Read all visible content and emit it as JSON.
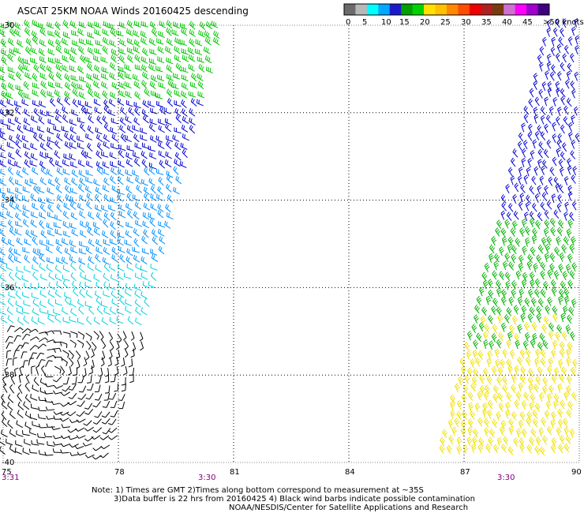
{
  "title": "ASCAT 25KM NOAA Winds 20160425 descending",
  "colors": {
    "background": "#ffffff",
    "grid": "#000000",
    "time_label": "#800080",
    "contamination": "#000000"
  },
  "legend": {
    "labels": [
      "0",
      "5",
      "10",
      "15",
      "20",
      "25",
      "30",
      "35",
      "40",
      "45",
      ">50 knots"
    ],
    "colors": [
      "#6b6b6b",
      "#b8b8b8",
      "#00ffff",
      "#00a8ff",
      "#1a1acc",
      "#00a000",
      "#00d200",
      "#ffe000",
      "#ffc000",
      "#ff8800",
      "#ff4c00",
      "#ee0000",
      "#b02020",
      "#7a3a10",
      "#d070d0",
      "#ff00ff",
      "#a000d0",
      "#400080"
    ]
  },
  "map": {
    "lat_labels": [
      "-30",
      "-32",
      "-34",
      "-36",
      "-38",
      "-40"
    ],
    "lon_labels": [
      "75",
      "78",
      "81",
      "84",
      "87",
      "90"
    ],
    "time_labels": [
      "3:31",
      "3:30",
      "3:30"
    ],
    "swaths": [
      {
        "name": "west-swath",
        "speed_bands": [
          {
            "lat_min": -31.8,
            "lat_max": -30,
            "speed": 17,
            "color": "#00c800"
          },
          {
            "lat_min": -33.3,
            "lat_max": -31.8,
            "speed": 12,
            "color": "#0000d0"
          },
          {
            "lat_min": -35.5,
            "lat_max": -33.3,
            "speed": 9,
            "color": "#0090ff"
          },
          {
            "lat_min": -37.0,
            "lat_max": -35.5,
            "speed": 6,
            "color": "#00d0e0"
          },
          {
            "lat_min": -40,
            "lat_max": -37.0,
            "speed": 3,
            "color": "#000000"
          }
        ]
      },
      {
        "name": "east-swath",
        "speed_bands": [
          {
            "lat_min": -34.5,
            "lat_max": -30,
            "speed": 14,
            "color": "#0000d0"
          },
          {
            "lat_min": -37.5,
            "lat_max": -34.5,
            "speed": 18,
            "color": "#00b000"
          },
          {
            "lat_min": -40,
            "lat_max": -37.5,
            "speed": 22,
            "color": "#f0e000"
          }
        ]
      }
    ]
  },
  "notes": [
    "Note: 1) Times are GMT 2)Times along bottom correspond to measurement at ~35S",
    "3)Data buffer is 22 hrs from 20160425 4) Black wind barbs indicate possible contamination",
    "NOAA/NESDIS/Center for Satellite Applications and Research"
  ]
}
